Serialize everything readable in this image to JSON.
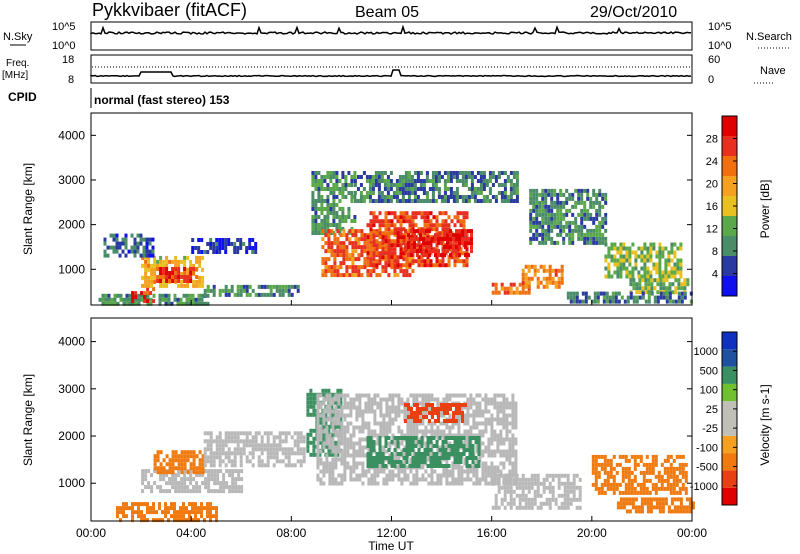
{
  "header": {
    "station": "Pykkvibaer (fitACF)",
    "beam": "Beam 05",
    "date": "29/Oct/2010"
  },
  "top_panels": {
    "nsky_label": "N.Sky",
    "nsearch_label": "N.Search",
    "nsky_ticks": [
      "10^5",
      "10^0"
    ],
    "nsearch_ticks": [
      "10^5",
      "10^0"
    ],
    "freq_label_1": "Freq.",
    "freq_label_2": "[MHz]",
    "freq_ticks": [
      "18",
      "8"
    ],
    "nave_label": "Nave",
    "nave_ticks": [
      "60",
      "0"
    ],
    "cpid_label": "CPID",
    "cpid_value": "normal (fast stereo) 153"
  },
  "colors": {
    "power_scale": [
      "#1010ee",
      "#2a3aa0",
      "#4a8c68",
      "#5aa84a",
      "#e8c020",
      "#f5a020",
      "#f07010",
      "#e83020",
      "#e00000"
    ],
    "velocity_scale": [
      "#e00000",
      "#e84010",
      "#f07a10",
      "#f5a020",
      "#c0c0b8",
      "#c0c0b8",
      "#70c030",
      "#3a9060",
      "#2050a0",
      "#1030c0"
    ],
    "ground_scatter": "#b8b8b8"
  },
  "chart_data": [
    {
      "type": "heatmap",
      "name": "power",
      "ylabel": "Slant Range [km]",
      "ylim": [
        200,
        4500
      ],
      "yticks": [
        1000,
        2000,
        3000,
        4000
      ],
      "colorbar_label": "Power [dB]",
      "colorbar_ticks": [
        "4",
        "8",
        "12",
        "16",
        "20",
        "24",
        "28"
      ],
      "colorbar_range": [
        0,
        32
      ],
      "regions": [
        {
          "t": [
            0.3,
            4.7
          ],
          "r": [
            200,
            450
          ],
          "v": 10
        },
        {
          "t": [
            1.6,
            2.5
          ],
          "r": [
            250,
            600
          ],
          "v": 26
        },
        {
          "t": [
            2.0,
            4.5
          ],
          "r": [
            600,
            1300
          ],
          "v": 18
        },
        {
          "t": [
            2.6,
            4.2
          ],
          "r": [
            750,
            1050
          ],
          "v": 27
        },
        {
          "t": [
            0.5,
            2.5
          ],
          "r": [
            1300,
            1800
          ],
          "v": 6
        },
        {
          "t": [
            4.0,
            6.6
          ],
          "r": [
            1400,
            1700
          ],
          "v": 4
        },
        {
          "t": [
            4.5,
            8.3
          ],
          "r": [
            400,
            650
          ],
          "v": 9
        },
        {
          "t": [
            8.8,
            10.5
          ],
          "r": [
            1800,
            3200
          ],
          "v": 10
        },
        {
          "t": [
            9.2,
            12.8
          ],
          "r": [
            900,
            1900
          ],
          "v": 24
        },
        {
          "t": [
            11.0,
            15.0
          ],
          "r": [
            1100,
            2300
          ],
          "v": 26
        },
        {
          "t": [
            12.5,
            15.2
          ],
          "r": [
            1300,
            1900
          ],
          "v": 29
        },
        {
          "t": [
            10.5,
            17.0
          ],
          "r": [
            2500,
            3200
          ],
          "v": 8
        },
        {
          "t": [
            16.0,
            17.5
          ],
          "r": [
            450,
            700
          ],
          "v": 24
        },
        {
          "t": [
            17.2,
            18.8
          ],
          "r": [
            600,
            1100
          ],
          "v": 22
        },
        {
          "t": [
            17.5,
            20.5
          ],
          "r": [
            1600,
            2800
          ],
          "v": 9
        },
        {
          "t": [
            20.5,
            23.6
          ],
          "r": [
            800,
            1600
          ],
          "v": 13
        },
        {
          "t": [
            21.5,
            23.8
          ],
          "r": [
            500,
            800
          ],
          "v": 12
        },
        {
          "t": [
            19.0,
            24.0
          ],
          "r": [
            300,
            500
          ],
          "v": 8
        }
      ]
    },
    {
      "type": "heatmap",
      "name": "velocity",
      "xlabel": "Time UT",
      "ylabel": "Slant Range [km]",
      "xlim": [
        0,
        24
      ],
      "xticks": [
        "00:00",
        "04:00",
        "08:00",
        "12:00",
        "16:00",
        "20:00",
        "00:00"
      ],
      "ylim": [
        200,
        4500
      ],
      "yticks": [
        1000,
        2000,
        3000,
        4000
      ],
      "colorbar_label": "Velocity [m s-1]",
      "colorbar_ticks": [
        "1000",
        "500",
        "100",
        "25",
        "-25",
        "-100",
        "-500",
        "-1000"
      ],
      "regions": [
        {
          "t": [
            1.0,
            5.0
          ],
          "r": [
            200,
            600
          ],
          "v": -300,
          "gs": false
        },
        {
          "t": [
            2.0,
            6.0
          ],
          "r": [
            800,
            1300
          ],
          "v": 0,
          "gs": true
        },
        {
          "t": [
            2.5,
            4.5
          ],
          "r": [
            1200,
            1700
          ],
          "v": -400,
          "gs": false
        },
        {
          "t": [
            4.5,
            8.5
          ],
          "r": [
            1400,
            2100
          ],
          "v": 0,
          "gs": true
        },
        {
          "t": [
            8.6,
            10.0
          ],
          "r": [
            1600,
            3000
          ],
          "v": 200,
          "gs": false
        },
        {
          "t": [
            9.0,
            17.0
          ],
          "r": [
            1000,
            2900
          ],
          "v": 0,
          "gs": true
        },
        {
          "t": [
            12.5,
            15.0
          ],
          "r": [
            2300,
            2700
          ],
          "v": -600,
          "gs": false
        },
        {
          "t": [
            11.0,
            15.5
          ],
          "r": [
            1400,
            2000
          ],
          "v": 300,
          "gs": false
        },
        {
          "t": [
            16.0,
            19.5
          ],
          "r": [
            500,
            1200
          ],
          "v": 0,
          "gs": true
        },
        {
          "t": [
            20.0,
            23.8
          ],
          "r": [
            800,
            1600
          ],
          "v": -300,
          "gs": false
        },
        {
          "t": [
            21.0,
            24.0
          ],
          "r": [
            400,
            700
          ],
          "v": -200,
          "gs": false
        }
      ]
    }
  ]
}
